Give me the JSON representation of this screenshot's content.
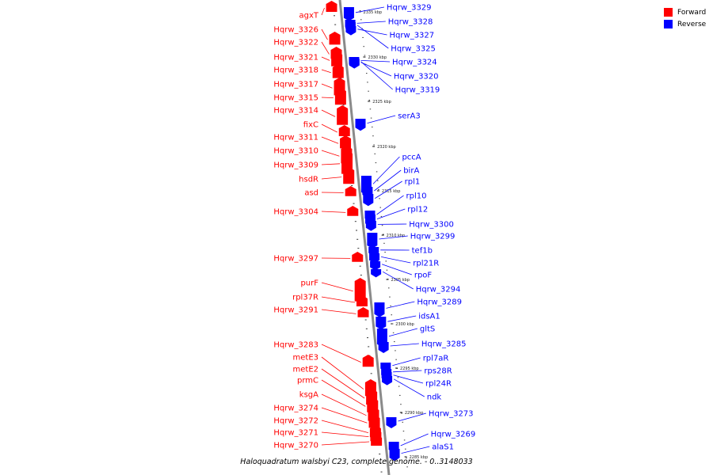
{
  "legend": {
    "forward_label": "Forward",
    "reverse_label": "Reverse",
    "forward_color": "#ff0000",
    "reverse_color": "#0000ff"
  },
  "caption": "Haloquadratum walsbyi C23, complete genome. - 0..3148033",
  "ticks": [
    "2335 kbp",
    "2330 kbp",
    "2325 kbp",
    "2320 kbp",
    "2315 kbp",
    "2310 kbp",
    "2305 kbp",
    "2300 kbp",
    "2295 kbp",
    "2290 kbp",
    "2285 kbp"
  ],
  "forward_genes": [
    "agxT",
    "Hqrw_3326",
    "Hqrw_3322",
    "Hqrw_3321",
    "Hqrw_3318",
    "Hqrw_3317",
    "Hqrw_3315",
    "Hqrw_3314",
    "fixC",
    "Hqrw_3311",
    "Hqrw_3310",
    "Hqrw_3309",
    "hsdR",
    "asd",
    "Hqrw_3304",
    "Hqrw_3297",
    "purF",
    "rpl37R",
    "Hqrw_3291",
    "Hqrw_3283",
    "metE3",
    "metE2",
    "prmC",
    "ksgA",
    "Hqrw_3274",
    "Hqrw_3272",
    "Hqrw_3271",
    "Hqrw_3270"
  ],
  "reverse_genes": [
    "Hqrw_3329",
    "Hqrw_3328",
    "Hqrw_3327",
    "Hqrw_3325",
    "Hqrw_3324",
    "Hqrw_3320",
    "Hqrw_3319",
    "serA3",
    "pccA",
    "birA",
    "rpl1",
    "rpl10",
    "rpl12",
    "Hqrw_3300",
    "Hqrw_3299",
    "tef1b",
    "rpl21R",
    "rpoF",
    "Hqrw_3294",
    "Hqrw_3289",
    "idsA1",
    "gltS",
    "Hqrw_3285",
    "rpl7aR",
    "rps28R",
    "rpl24R",
    "ndk",
    "Hqrw_3273",
    "Hqrw_3269",
    "alaS1"
  ]
}
